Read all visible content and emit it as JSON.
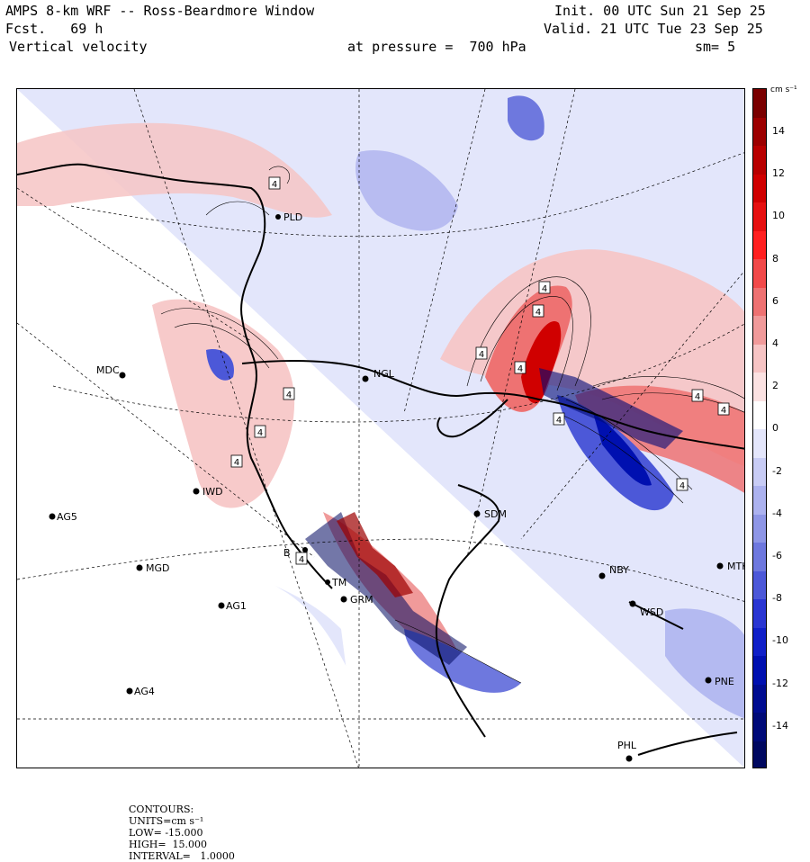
{
  "header": {
    "model_title": "AMPS 8-km WRF -- Ross-Beardmore Window",
    "init_label": "Init. 00 UTC Sun 21 Sep 25",
    "forecast_label": "Fcst.   69 h",
    "valid_label": "Valid. 21 UTC Tue 23 Sep 25",
    "field_label": "Vertical velocity",
    "pressure_label": "at pressure =  700 hPa",
    "smoothing_label": "sm= 5"
  },
  "colorbar": {
    "units_label": "cm s⁻¹",
    "ticks": [
      "14",
      "12",
      "10",
      "8",
      "6",
      "4",
      "2",
      "0",
      "-2",
      "-4",
      "-6",
      "-8",
      "-10",
      "-12",
      "-14"
    ],
    "colors": [
      "#7a0000",
      "#9c0000",
      "#b80000",
      "#d00000",
      "#e61010",
      "#ff2020",
      "#f24a4a",
      "#ee7272",
      "#f09a9a",
      "#f6c4c4",
      "#fbe2e2",
      "#ffffff",
      "#e4e6fb",
      "#c8ccf5",
      "#acb2ef",
      "#8e96e6",
      "#6e78de",
      "#4c58d8",
      "#2a36d2",
      "#1020c8",
      "#0010b0",
      "#000c90",
      "#000a78",
      "#000860"
    ]
  },
  "stations": [
    {
      "id": "MDC",
      "label": "MDC"
    },
    {
      "id": "NGL",
      "label": "NGL"
    },
    {
      "id": "IWD",
      "label": "IWD"
    },
    {
      "id": "AG5",
      "label": "AG5"
    },
    {
      "id": "SDM",
      "label": "SDM"
    },
    {
      "id": "MGD",
      "label": "MGD"
    },
    {
      "id": "AG1",
      "label": "AG1"
    },
    {
      "id": "NBY",
      "label": "NBY"
    },
    {
      "id": "MTK",
      "label": "MTK"
    },
    {
      "id": "GRM",
      "label": "GRM"
    },
    {
      "id": "WSD",
      "label": "WSD"
    },
    {
      "id": "AG4",
      "label": "AG4"
    },
    {
      "id": "PNE",
      "label": "PNE"
    },
    {
      "id": "PHL",
      "label": "PHL"
    },
    {
      "id": "PLD",
      "label": "PLD"
    },
    {
      "id": "BTM",
      "label": "TM"
    },
    {
      "id": "BEA",
      "label": "B"
    }
  ],
  "contour_labels": [
    "4",
    "4",
    "4",
    "4",
    "4",
    "4",
    "4",
    "4",
    "4",
    "4",
    "4",
    "4",
    "4"
  ],
  "footer": {
    "contours_label": "CONTOURS:",
    "units_label": "UNITS=cm s⁻¹",
    "low_label": "LOW= -15.000",
    "high_label": "HIGH=  15.000",
    "interval_label": "INTERVAL=   1.0000"
  }
}
